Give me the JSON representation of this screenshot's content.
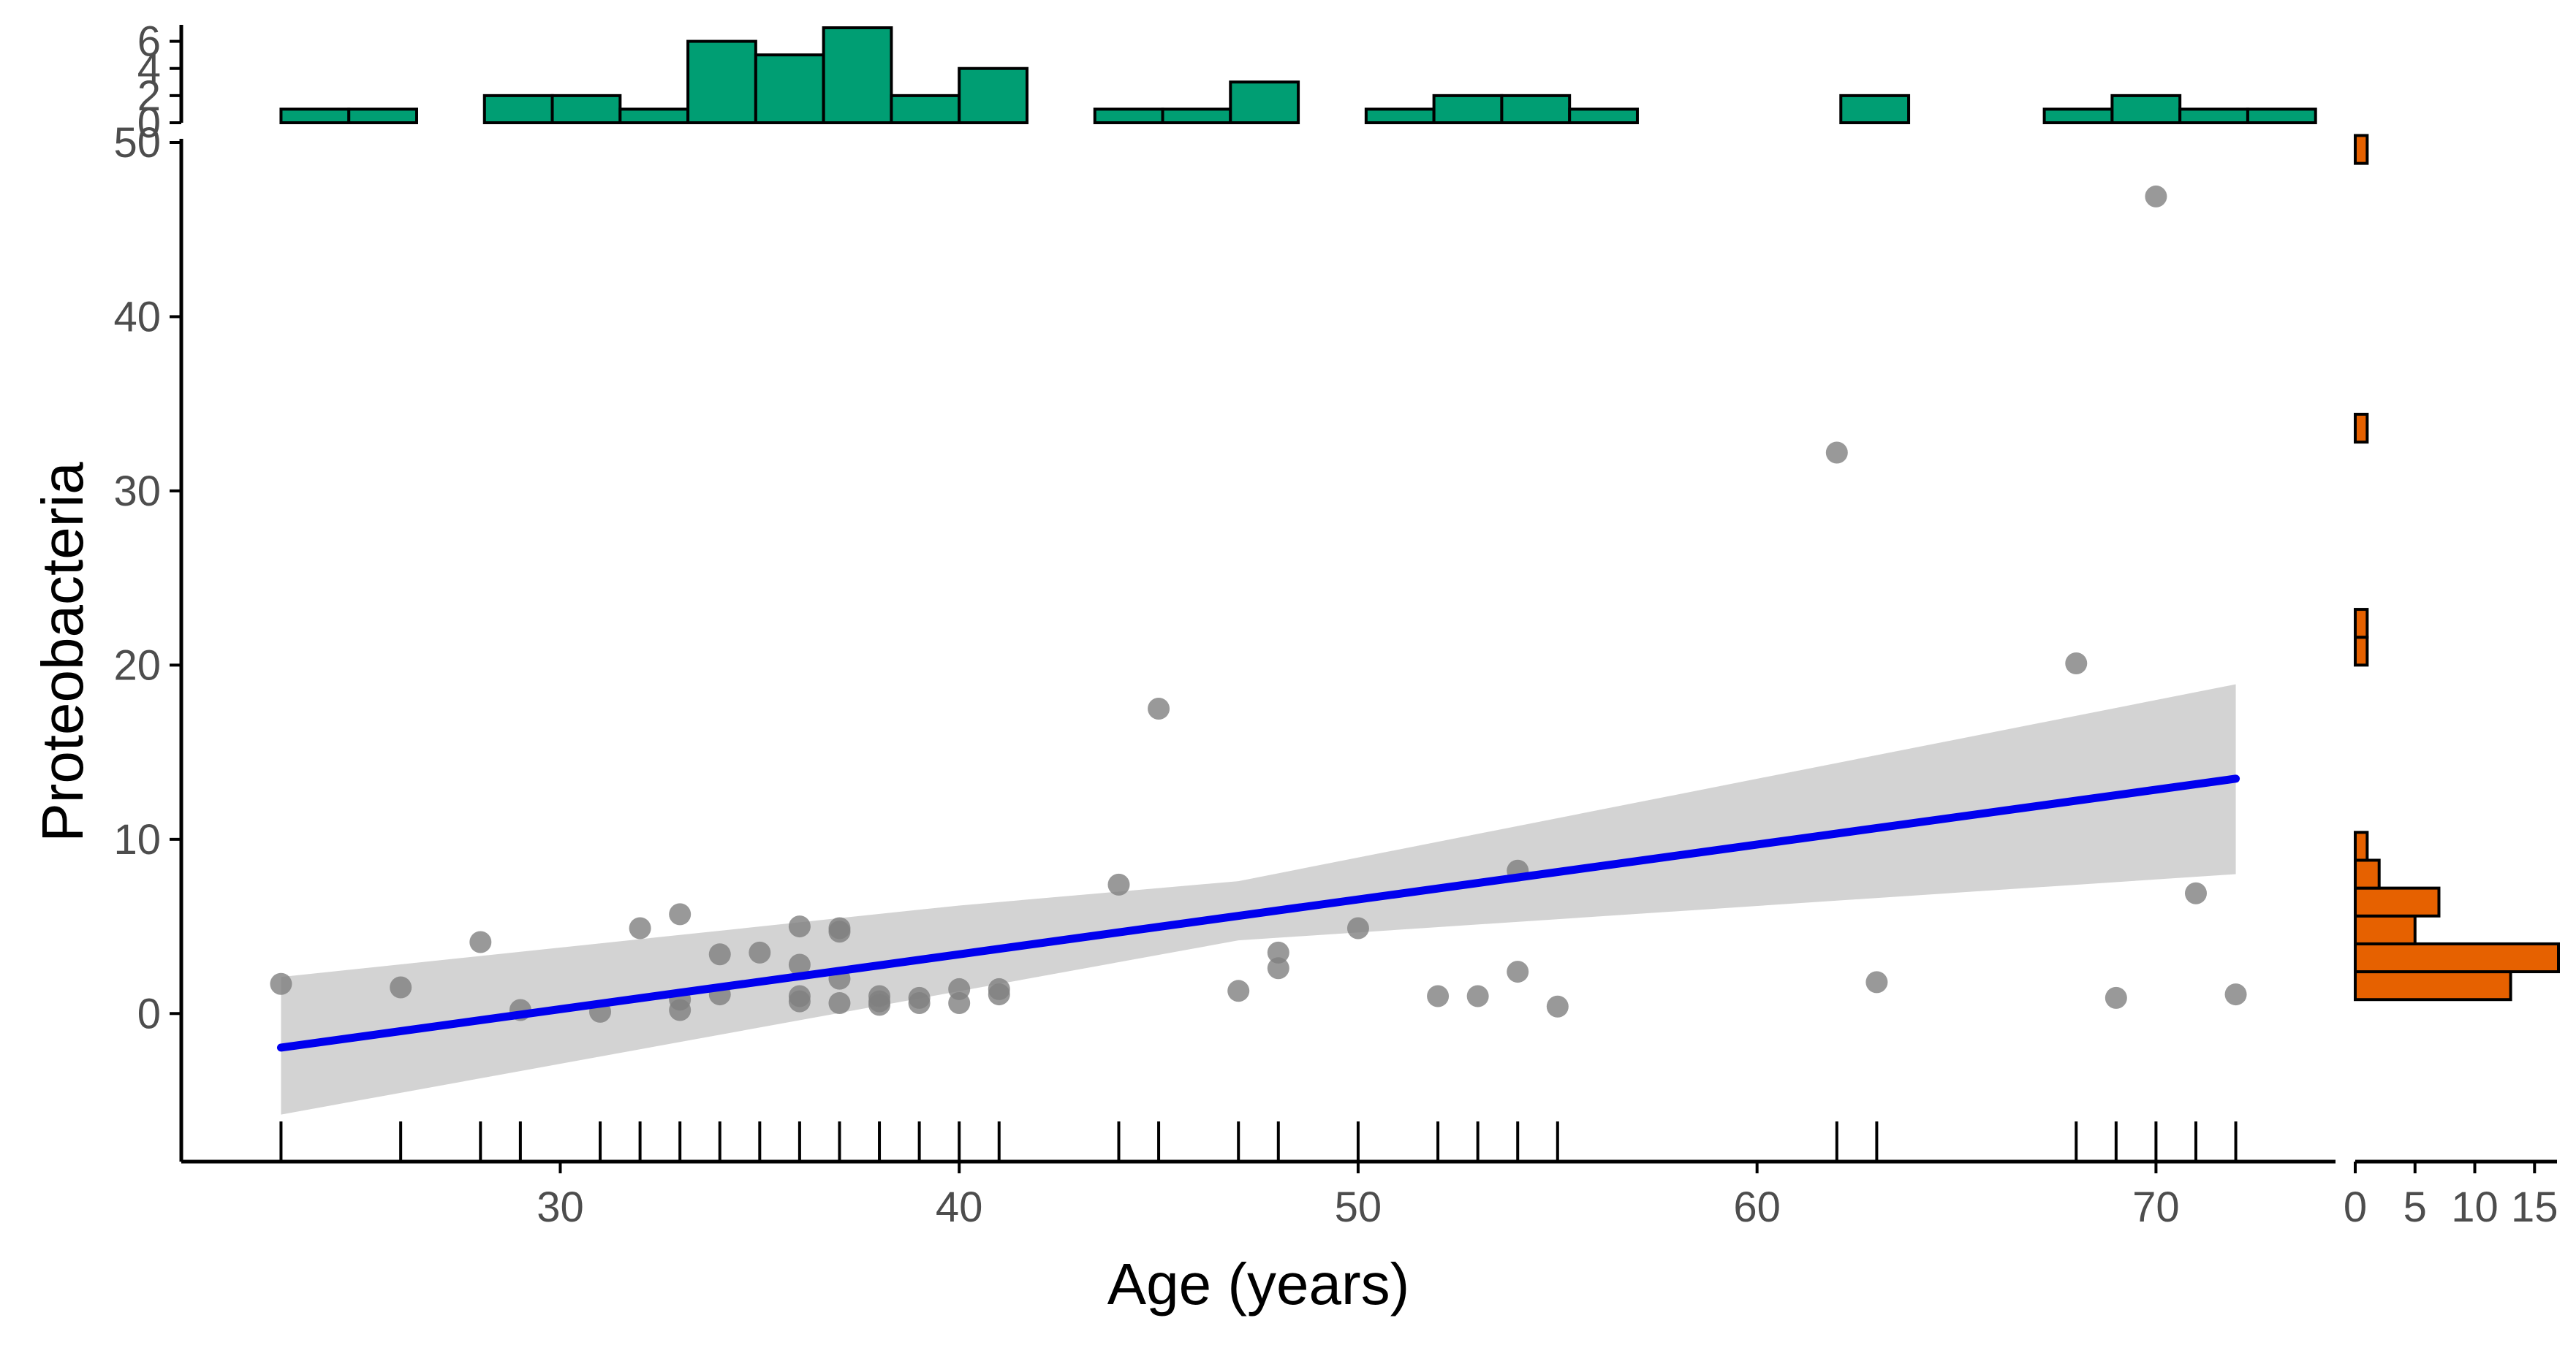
{
  "chart_data": {
    "type": "scatter",
    "title": "",
    "xlabel": "Age (years)",
    "ylabel": "Proteobacteria",
    "xlim": [
      20.5,
      74.5
    ],
    "ylim": [
      -8.5,
      50
    ],
    "x_ticks": [
      30,
      40,
      50,
      60,
      70
    ],
    "y_ticks": [
      0,
      10,
      20,
      30,
      40,
      50
    ],
    "grid": false,
    "points": [
      [
        23,
        1.7
      ],
      [
        26,
        1.5
      ],
      [
        28,
        4.1
      ],
      [
        29,
        0.2
      ],
      [
        31,
        0.1
      ],
      [
        32,
        4.9
      ],
      [
        33,
        5.7
      ],
      [
        33,
        0.2
      ],
      [
        33,
        0.8
      ],
      [
        34,
        3.4
      ],
      [
        34,
        1.1
      ],
      [
        35,
        3.5
      ],
      [
        36,
        5.0
      ],
      [
        36,
        2.8
      ],
      [
        36,
        1.0
      ],
      [
        36,
        0.7
      ],
      [
        37,
        4.9
      ],
      [
        37,
        4.7
      ],
      [
        37,
        2.0
      ],
      [
        37,
        0.6
      ],
      [
        38,
        1.0
      ],
      [
        38,
        0.7
      ],
      [
        38,
        0.5
      ],
      [
        39,
        0.9
      ],
      [
        39,
        0.6
      ],
      [
        40,
        1.4
      ],
      [
        40,
        0.6
      ],
      [
        41,
        1.4
      ],
      [
        41,
        1.1
      ],
      [
        44,
        7.4
      ],
      [
        45,
        17.5
      ],
      [
        47,
        1.3
      ],
      [
        48,
        3.5
      ],
      [
        48,
        2.6
      ],
      [
        50,
        4.9
      ],
      [
        52,
        1.0
      ],
      [
        53,
        1.0
      ],
      [
        54,
        8.2
      ],
      [
        54,
        2.4
      ],
      [
        55,
        0.4
      ],
      [
        62,
        32.2
      ],
      [
        63,
        1.8
      ],
      [
        68,
        20.1
      ],
      [
        69,
        0.9
      ],
      [
        70,
        46.9
      ],
      [
        71,
        6.9
      ],
      [
        72,
        1.1
      ]
    ],
    "rug_x": [
      23,
      26,
      28,
      29,
      31,
      32,
      33,
      34,
      35,
      36,
      37,
      38,
      39,
      40,
      41,
      44,
      45,
      47,
      48,
      50,
      52,
      53,
      54,
      55,
      62,
      63,
      68,
      69,
      70,
      71,
      72
    ],
    "fit": {
      "method": "lm",
      "x_range": [
        23,
        72
      ],
      "intercept": -9.2,
      "slope": 0.315,
      "ci_lower": [
        [
          23,
          -5.8
        ],
        [
          47,
          4.2
        ],
        [
          72,
          8.0
        ]
      ],
      "ci_upper": [
        [
          23,
          2.1
        ],
        [
          40,
          6.2
        ],
        [
          47,
          7.6
        ],
        [
          72,
          18.9
        ]
      ]
    },
    "top_histogram": {
      "axis": "Age (years)",
      "bin_width": 1.7,
      "start": 23,
      "counts": [
        1,
        1,
        0,
        2,
        2,
        1,
        6,
        5,
        7,
        2,
        4,
        0,
        1,
        1,
        3,
        0,
        1,
        2,
        2,
        1,
        0,
        0,
        0,
        2,
        0,
        0,
        1,
        2,
        1,
        1
      ],
      "y_ticks": [
        0,
        2,
        4,
        6
      ],
      "fill": "#009E73"
    },
    "right_histogram": {
      "axis": "Proteobacteria",
      "bin_width": 1.6,
      "start": 0.8,
      "counts": [
        13,
        17,
        5,
        7,
        2,
        1,
        0,
        0,
        0,
        0,
        0,
        0,
        1,
        1,
        0,
        0,
        0,
        0,
        0,
        0,
        1,
        0,
        0,
        0,
        0,
        0,
        0,
        0,
        0,
        0,
        1
      ],
      "x_ticks": [
        0,
        5,
        10,
        15
      ],
      "fill": "#E66100"
    },
    "colors": {
      "points": "#808080",
      "fit_line": "#0000EE",
      "ci_band": "#D3D3D3",
      "top_hist": "#009E73",
      "right_hist": "#E66100",
      "axis": "#000000",
      "tick_text": "#4d4d4d"
    }
  }
}
